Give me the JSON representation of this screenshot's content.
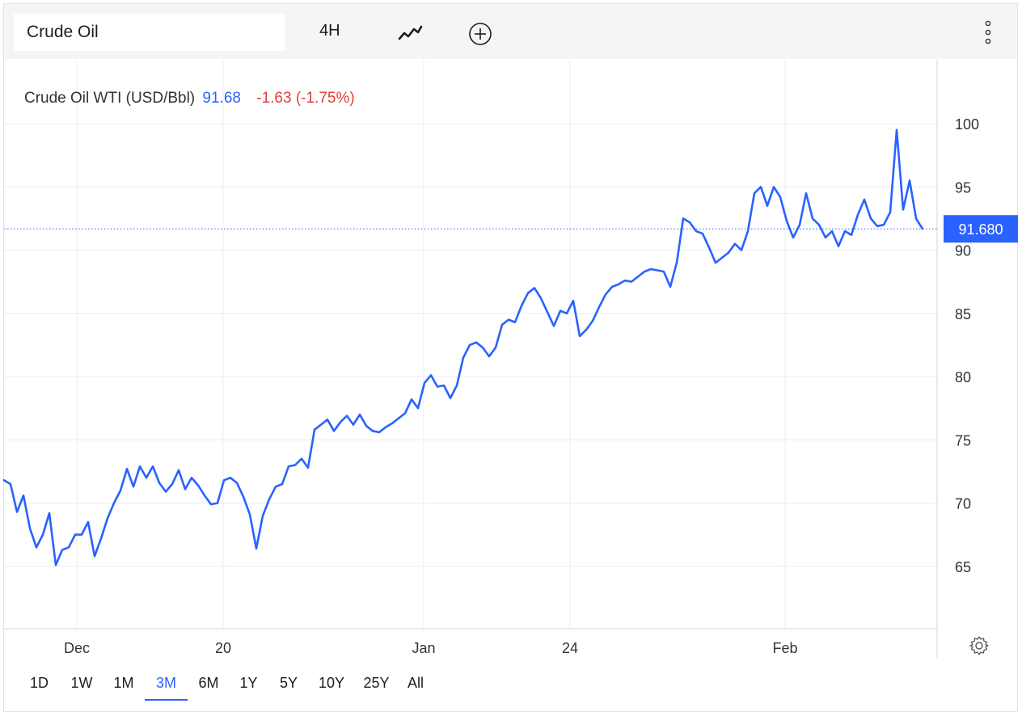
{
  "toolbar": {
    "symbol": "Crude Oil",
    "interval": "4H",
    "chart_type_icon": "line-chart-icon",
    "add_icon": "plus-circle-icon",
    "menu_icon": "vertical-dots-icon"
  },
  "legend": {
    "name": "Crude Oil WTI (USD/Bbl)",
    "price": "91.68",
    "change": "-1.63 (-1.75%)"
  },
  "colors": {
    "line": "#2962ff",
    "positive": "#2962ff",
    "negative": "#e0403a",
    "price_tag_bg": "#2962ff"
  },
  "chart_data": {
    "type": "line",
    "title": "Crude Oil WTI (USD/Bbl)",
    "ylim": [
      60,
      104
    ],
    "yticks": [
      65,
      70,
      75,
      80,
      85,
      90,
      95,
      100
    ],
    "xtick_labels": [
      "Dec",
      "20",
      "Jan",
      "24",
      "Feb"
    ],
    "last_price_label": "91.680",
    "grid": true,
    "series": [
      {
        "values": [
          71.8,
          71.5,
          69.3,
          70.6,
          68.0,
          66.5,
          67.5,
          69.2,
          65.1,
          66.3,
          66.5,
          67.5,
          67.5,
          68.5,
          65.8,
          67.2,
          68.8,
          70.0,
          71.0,
          72.7,
          71.3,
          72.9,
          72.0,
          72.9,
          71.6,
          70.9,
          71.5,
          72.6,
          71.1,
          72.0,
          71.4,
          70.6,
          69.9,
          70.0,
          71.8,
          72.0,
          71.6,
          70.5,
          69.1,
          66.4,
          69.0,
          70.3,
          71.3,
          71.5,
          72.9,
          73.0,
          73.5,
          72.8,
          75.8,
          76.2,
          76.6,
          75.7,
          76.4,
          76.9,
          76.2,
          77.0,
          76.1,
          75.7,
          75.6,
          76.0,
          76.3,
          76.7,
          77.1,
          78.2,
          77.5,
          79.5,
          80.1,
          79.2,
          79.3,
          78.3,
          79.3,
          81.5,
          82.5,
          82.7,
          82.3,
          81.6,
          82.3,
          84.1,
          84.5,
          84.3,
          85.6,
          86.6,
          87.0,
          86.2,
          85.1,
          84.0,
          85.2,
          85.0,
          86.0,
          83.2,
          83.7,
          84.4,
          85.5,
          86.5,
          87.1,
          87.3,
          87.6,
          87.5,
          87.9,
          88.3,
          88.5,
          88.4,
          88.3,
          87.1,
          89.0,
          92.5,
          92.2,
          91.5,
          91.3,
          90.2,
          89.0,
          89.4,
          89.8,
          90.5,
          90.0,
          91.5,
          94.5,
          95.0,
          93.5,
          95.0,
          94.2,
          92.3,
          91.0,
          92.0,
          94.5,
          92.5,
          92.0,
          91.0,
          91.5,
          90.3,
          91.5,
          91.2,
          92.8,
          94.0,
          92.5,
          91.9,
          92.0,
          93.0,
          99.5,
          93.2,
          95.5,
          92.5,
          91.68
        ]
      }
    ]
  },
  "ranges": [
    "1D",
    "1W",
    "1M",
    "3M",
    "6M",
    "1Y",
    "5Y",
    "10Y",
    "25Y",
    "All"
  ],
  "active_range": "3M"
}
